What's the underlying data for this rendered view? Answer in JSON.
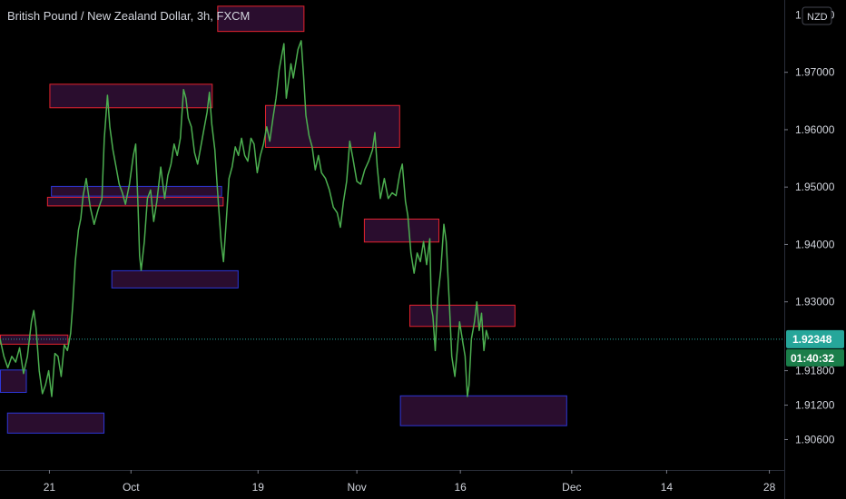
{
  "header": {
    "title": "British Pound / New Zealand Dollar, 3h, FXCM"
  },
  "currency_button": "NZD",
  "colors": {
    "background": "#000000",
    "line": "#4caf50",
    "price_badge": "#26a69a",
    "countdown_badge": "#1b7e4a",
    "zone_red_border": "#e5232e",
    "zone_blue_border": "#2d37d8",
    "zone_fill": "#2a0d2e",
    "axis_border": "#2a2e39",
    "last_price_line": "#26a69a"
  },
  "last_price": {
    "value": "1.92348",
    "countdown": "01:40:32"
  },
  "chart_data": {
    "type": "line",
    "title": "British Pound / New Zealand Dollar, 3h, FXCM",
    "xlabel": "",
    "ylabel": "",
    "ylim": [
      1.9007,
      1.9826
    ],
    "xlim": [
      0,
      100
    ],
    "y_ticks": [
      {
        "value": 1.97,
        "label": "1.97000"
      },
      {
        "value": 1.96,
        "label": "1.96000"
      },
      {
        "value": 1.95,
        "label": "1.95000"
      },
      {
        "value": 1.94,
        "label": "1.94000"
      },
      {
        "value": 1.93,
        "label": "1.93000"
      },
      {
        "value": 1.918,
        "label": "1.91800"
      },
      {
        "value": 1.912,
        "label": "1.91200"
      },
      {
        "value": 1.906,
        "label": "1.90600"
      }
    ],
    "y_top_partial_label": "1.98000",
    "x_ticks": [
      {
        "pos": 6.3,
        "label": "21"
      },
      {
        "pos": 16.7,
        "label": "Oct"
      },
      {
        "pos": 32.9,
        "label": "19"
      },
      {
        "pos": 45.5,
        "label": "Nov"
      },
      {
        "pos": 58.7,
        "label": "16"
      },
      {
        "pos": 72.9,
        "label": "Dec"
      },
      {
        "pos": 85.0,
        "label": "14"
      },
      {
        "pos": 98.1,
        "label": "28"
      }
    ],
    "series": [
      {
        "points": [
          [
            0,
            1.9236
          ],
          [
            0.5,
            1.9205
          ],
          [
            1,
            1.9185
          ],
          [
            1.5,
            1.9205
          ],
          [
            2,
            1.9195
          ],
          [
            2.5,
            1.922
          ],
          [
            3,
            1.9175
          ],
          [
            3.5,
            1.9205
          ],
          [
            4,
            1.9265
          ],
          [
            4.3,
            1.9285
          ],
          [
            4.6,
            1.9255
          ],
          [
            5,
            1.918
          ],
          [
            5.4,
            1.914
          ],
          [
            5.8,
            1.9155
          ],
          [
            6.2,
            1.918
          ],
          [
            6.6,
            1.9135
          ],
          [
            7,
            1.921
          ],
          [
            7.4,
            1.9205
          ],
          [
            7.8,
            1.917
          ],
          [
            8.2,
            1.9225
          ],
          [
            8.6,
            1.9215
          ],
          [
            9,
            1.9245
          ],
          [
            9.3,
            1.93
          ],
          [
            9.6,
            1.937
          ],
          [
            10,
            1.9425
          ],
          [
            10.3,
            1.9445
          ],
          [
            10.6,
            1.9485
          ],
          [
            11,
            1.9515
          ],
          [
            11.5,
            1.9465
          ],
          [
            12,
            1.9435
          ],
          [
            12.5,
            1.946
          ],
          [
            13,
            1.948
          ],
          [
            13.3,
            1.9585
          ],
          [
            13.7,
            1.966
          ],
          [
            14,
            1.9605
          ],
          [
            14.4,
            1.9565
          ],
          [
            14.8,
            1.9535
          ],
          [
            15.2,
            1.9505
          ],
          [
            15.6,
            1.949
          ],
          [
            16,
            1.947
          ],
          [
            16.5,
            1.9505
          ],
          [
            17,
            1.9555
          ],
          [
            17.3,
            1.9575
          ],
          [
            17.6,
            1.9465
          ],
          [
            17.8,
            1.938
          ],
          [
            18,
            1.9355
          ],
          [
            18.4,
            1.9405
          ],
          [
            18.8,
            1.948
          ],
          [
            19.2,
            1.9495
          ],
          [
            19.6,
            1.944
          ],
          [
            20,
            1.9475
          ],
          [
            20.5,
            1.9535
          ],
          [
            21,
            1.948
          ],
          [
            21.4,
            1.952
          ],
          [
            21.8,
            1.954
          ],
          [
            22.2,
            1.9575
          ],
          [
            22.6,
            1.9555
          ],
          [
            23,
            1.9585
          ],
          [
            23.4,
            1.967
          ],
          [
            23.7,
            1.9655
          ],
          [
            24,
            1.962
          ],
          [
            24.4,
            1.9605
          ],
          [
            24.8,
            1.956
          ],
          [
            25.2,
            1.954
          ],
          [
            25.6,
            1.957
          ],
          [
            26,
            1.96
          ],
          [
            26.4,
            1.963
          ],
          [
            26.7,
            1.9665
          ],
          [
            27,
            1.961
          ],
          [
            27.4,
            1.9565
          ],
          [
            27.8,
            1.948
          ],
          [
            28.2,
            1.9405
          ],
          [
            28.5,
            1.937
          ],
          [
            28.8,
            1.943
          ],
          [
            29.2,
            1.9515
          ],
          [
            29.6,
            1.9535
          ],
          [
            30,
            1.957
          ],
          [
            30.4,
            1.9555
          ],
          [
            30.8,
            1.9585
          ],
          [
            31.2,
            1.9555
          ],
          [
            31.6,
            1.9545
          ],
          [
            32,
            1.9585
          ],
          [
            32.4,
            1.9575
          ],
          [
            32.8,
            1.9525
          ],
          [
            33.2,
            1.9555
          ],
          [
            33.6,
            1.9575
          ],
          [
            34,
            1.9605
          ],
          [
            34.4,
            1.958
          ],
          [
            34.8,
            1.962
          ],
          [
            35.2,
            1.9655
          ],
          [
            35.6,
            1.9705
          ],
          [
            36,
            1.9735
          ],
          [
            36.2,
            1.975
          ],
          [
            36.5,
            1.9655
          ],
          [
            36.8,
            1.9685
          ],
          [
            37.1,
            1.9715
          ],
          [
            37.4,
            1.969
          ],
          [
            37.7,
            1.9715
          ],
          [
            38,
            1.974
          ],
          [
            38.4,
            1.9755
          ],
          [
            38.7,
            1.9695
          ],
          [
            39,
            1.9625
          ],
          [
            39.4,
            1.959
          ],
          [
            39.8,
            1.957
          ],
          [
            40.2,
            1.953
          ],
          [
            40.6,
            1.9555
          ],
          [
            41,
            1.9525
          ],
          [
            41.5,
            1.9515
          ],
          [
            42,
            1.9495
          ],
          [
            42.5,
            1.9465
          ],
          [
            43,
            1.9455
          ],
          [
            43.4,
            1.943
          ],
          [
            43.8,
            1.9475
          ],
          [
            44.2,
            1.951
          ],
          [
            44.6,
            1.958
          ],
          [
            45,
            1.955
          ],
          [
            45.5,
            1.951
          ],
          [
            46,
            1.9505
          ],
          [
            46.5,
            1.953
          ],
          [
            47,
            1.9545
          ],
          [
            47.5,
            1.9565
          ],
          [
            47.8,
            1.9595
          ],
          [
            48.1,
            1.9535
          ],
          [
            48.5,
            1.948
          ],
          [
            49,
            1.9515
          ],
          [
            49.5,
            1.948
          ],
          [
            50,
            1.949
          ],
          [
            50.5,
            1.9485
          ],
          [
            51,
            1.9525
          ],
          [
            51.3,
            1.954
          ],
          [
            51.7,
            1.9475
          ],
          [
            52,
            1.945
          ],
          [
            52.4,
            1.9385
          ],
          [
            52.8,
            1.935
          ],
          [
            53.2,
            1.9385
          ],
          [
            53.6,
            1.937
          ],
          [
            54,
            1.9405
          ],
          [
            54.4,
            1.9365
          ],
          [
            54.8,
            1.941
          ],
          [
            55,
            1.929
          ],
          [
            55.2,
            1.9275
          ],
          [
            55.5,
            1.9215
          ],
          [
            55.8,
            1.9305
          ],
          [
            56.2,
            1.9355
          ],
          [
            56.6,
            1.9435
          ],
          [
            56.9,
            1.9405
          ],
          [
            57.3,
            1.9295
          ],
          [
            57.6,
            1.9205
          ],
          [
            58,
            1.917
          ],
          [
            58.3,
            1.9215
          ],
          [
            58.6,
            1.9265
          ],
          [
            59,
            1.923
          ],
          [
            59.3,
            1.9205
          ],
          [
            59.6,
            1.9135
          ],
          [
            59.8,
            1.9155
          ],
          [
            60.1,
            1.9235
          ],
          [
            60.5,
            1.9265
          ],
          [
            60.8,
            1.93
          ],
          [
            61.1,
            1.925
          ],
          [
            61.4,
            1.928
          ],
          [
            61.7,
            1.9215
          ],
          [
            62,
            1.925
          ],
          [
            62.3,
            1.9235
          ]
        ]
      }
    ],
    "zones": [
      {
        "color": "red",
        "x0": 27.7,
        "x1": 38.7,
        "y_top": 1.9816,
        "y_bottom": 1.9772
      },
      {
        "color": "red",
        "x0": 6.3,
        "x1": 27.0,
        "y_top": 1.968,
        "y_bottom": 1.9639
      },
      {
        "color": "red",
        "x0": 33.8,
        "x1": 50.9,
        "y_top": 1.9643,
        "y_bottom": 1.957
      },
      {
        "color": "blue",
        "x0": 6.5,
        "x1": 28.2,
        "y_top": 1.9502,
        "y_bottom": 1.9485
      },
      {
        "color": "red",
        "x0": 6.0,
        "x1": 28.4,
        "y_top": 1.9483,
        "y_bottom": 1.9468
      },
      {
        "color": "red",
        "x0": 46.4,
        "x1": 55.9,
        "y_top": 1.9445,
        "y_bottom": 1.9405
      },
      {
        "color": "blue",
        "x0": 14.2,
        "x1": 30.3,
        "y_top": 1.9355,
        "y_bottom": 1.9325
      },
      {
        "color": "red",
        "x0": 52.2,
        "x1": 65.6,
        "y_top": 1.9295,
        "y_bottom": 1.9258
      },
      {
        "color": "red",
        "x0": 0.0,
        "x1": 8.6,
        "y_top": 1.9243,
        "y_bottom": 1.9227
      },
      {
        "color": "blue",
        "x0": 0.0,
        "x1": 3.3,
        "y_top": 1.9182,
        "y_bottom": 1.9143
      },
      {
        "color": "blue",
        "x0": 51.0,
        "x1": 72.2,
        "y_top": 1.9137,
        "y_bottom": 1.9085
      },
      {
        "color": "blue",
        "x0": 0.9,
        "x1": 13.2,
        "y_top": 1.9107,
        "y_bottom": 1.9072
      }
    ]
  }
}
